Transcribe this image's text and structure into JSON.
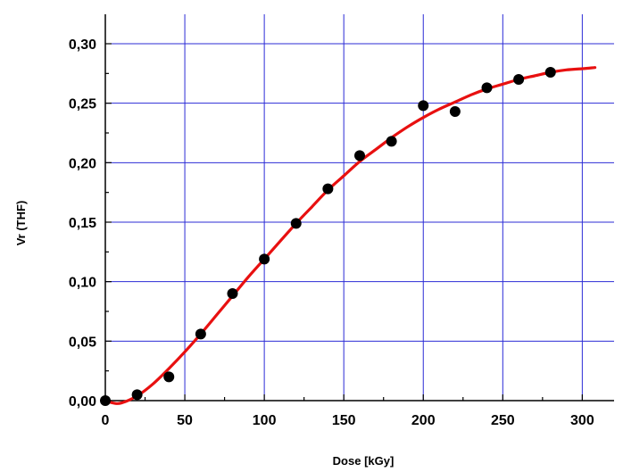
{
  "chart_data": {
    "type": "scatter",
    "title": "",
    "xlabel": "Dose [kGy]",
    "ylabel": "Vr (THF)",
    "xlim": [
      0,
      320
    ],
    "ylim": [
      0,
      0.3
    ],
    "x_ticks": [
      0,
      50,
      100,
      150,
      200,
      250,
      300
    ],
    "y_ticks": [
      0,
      0.05,
      0.1,
      0.15,
      0.2,
      0.25,
      0.3
    ],
    "x_tick_labels": [
      "0",
      "50",
      "100",
      "150",
      "200",
      "250",
      "300"
    ],
    "y_tick_labels": [
      "0,00",
      "0,05",
      "0,10",
      "0,15",
      "0,20",
      "0,25",
      "0,30"
    ],
    "grid": true,
    "grid_color": "#2b2bd6",
    "series": [
      {
        "kind": "scatter",
        "color": "#000000",
        "x": [
          0,
          20,
          40,
          60,
          80,
          100,
          120,
          140,
          160,
          180,
          200,
          220,
          240,
          260,
          280
        ],
        "y": [
          0.0,
          0.005,
          0.02,
          0.056,
          0.09,
          0.119,
          0.149,
          0.178,
          0.206,
          0.218,
          0.248,
          0.243,
          0.263,
          0.27,
          0.276
        ]
      },
      {
        "kind": "line",
        "color": "#e81010",
        "x": [
          0,
          5,
          10,
          20,
          30,
          40,
          50,
          60,
          70,
          80,
          90,
          100,
          110,
          120,
          130,
          140,
          150,
          160,
          170,
          180,
          190,
          200,
          210,
          220,
          230,
          240,
          250,
          260,
          270,
          280,
          290,
          300,
          308
        ],
        "y": [
          0.0,
          -0.002,
          -0.002,
          0.004,
          0.014,
          0.027,
          0.041,
          0.056,
          0.072,
          0.088,
          0.104,
          0.119,
          0.134,
          0.149,
          0.163,
          0.177,
          0.189,
          0.201,
          0.211,
          0.221,
          0.23,
          0.238,
          0.245,
          0.251,
          0.257,
          0.262,
          0.266,
          0.27,
          0.273,
          0.276,
          0.278,
          0.279,
          0.28
        ]
      }
    ]
  }
}
